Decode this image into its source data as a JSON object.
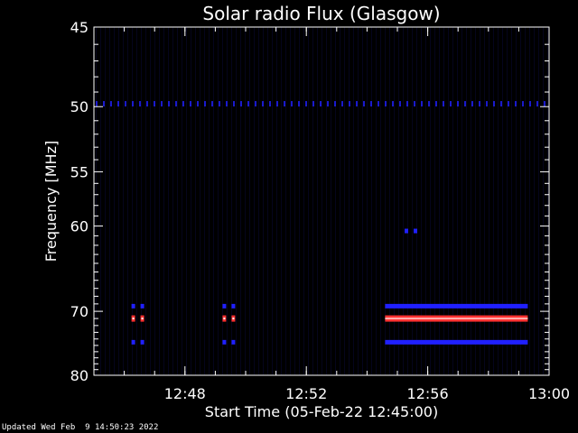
{
  "chart_data": {
    "type": "heatmap",
    "title": "Solar radio Flux (Glasgow)",
    "xlabel": "Start Time (05-Feb-22 12:45:00)",
    "ylabel": "Frequency [MHz]",
    "x_range": [
      "12:45",
      "13:00"
    ],
    "x_ticks": [
      "12:48",
      "12:52",
      "12:56",
      "13:00"
    ],
    "y_range": [
      45,
      80
    ],
    "y_ticks": [
      45,
      50,
      55,
      60,
      70,
      80
    ],
    "y_scale": "reciprocal",
    "colors": {
      "background": "#000000",
      "low": "#0a0a3a",
      "mid": "#2020ff",
      "high": "#ff3030",
      "peak": "#ffffff"
    },
    "features": [
      {
        "freq": 49.8,
        "start": "12:45",
        "end": "13:00",
        "intensity": "low",
        "style": "dotted"
      },
      {
        "freq": 69.3,
        "start": "12:46",
        "end": "12:46",
        "intensity": "mid"
      },
      {
        "freq": 71.0,
        "start": "12:46",
        "end": "12:46",
        "intensity": "high"
      },
      {
        "freq": 74.5,
        "start": "12:46",
        "end": "12:46",
        "intensity": "mid"
      },
      {
        "freq": 69.3,
        "start": "12:49",
        "end": "12:49",
        "intensity": "mid"
      },
      {
        "freq": 71.0,
        "start": "12:49",
        "end": "12:49",
        "intensity": "high"
      },
      {
        "freq": 74.5,
        "start": "12:49",
        "end": "12:49",
        "intensity": "mid"
      },
      {
        "freq": 69.3,
        "start": "12:54",
        "end": "12:59",
        "intensity": "mid"
      },
      {
        "freq": 71.0,
        "start": "12:54",
        "end": "12:59",
        "intensity": "high"
      },
      {
        "freq": 74.5,
        "start": "12:54",
        "end": "12:59",
        "intensity": "mid"
      },
      {
        "freq": 60.5,
        "start": "12:55",
        "end": "12:55",
        "intensity": "mid"
      }
    ]
  },
  "footer": "Updated Wed Feb  9 14:50:23 2022"
}
